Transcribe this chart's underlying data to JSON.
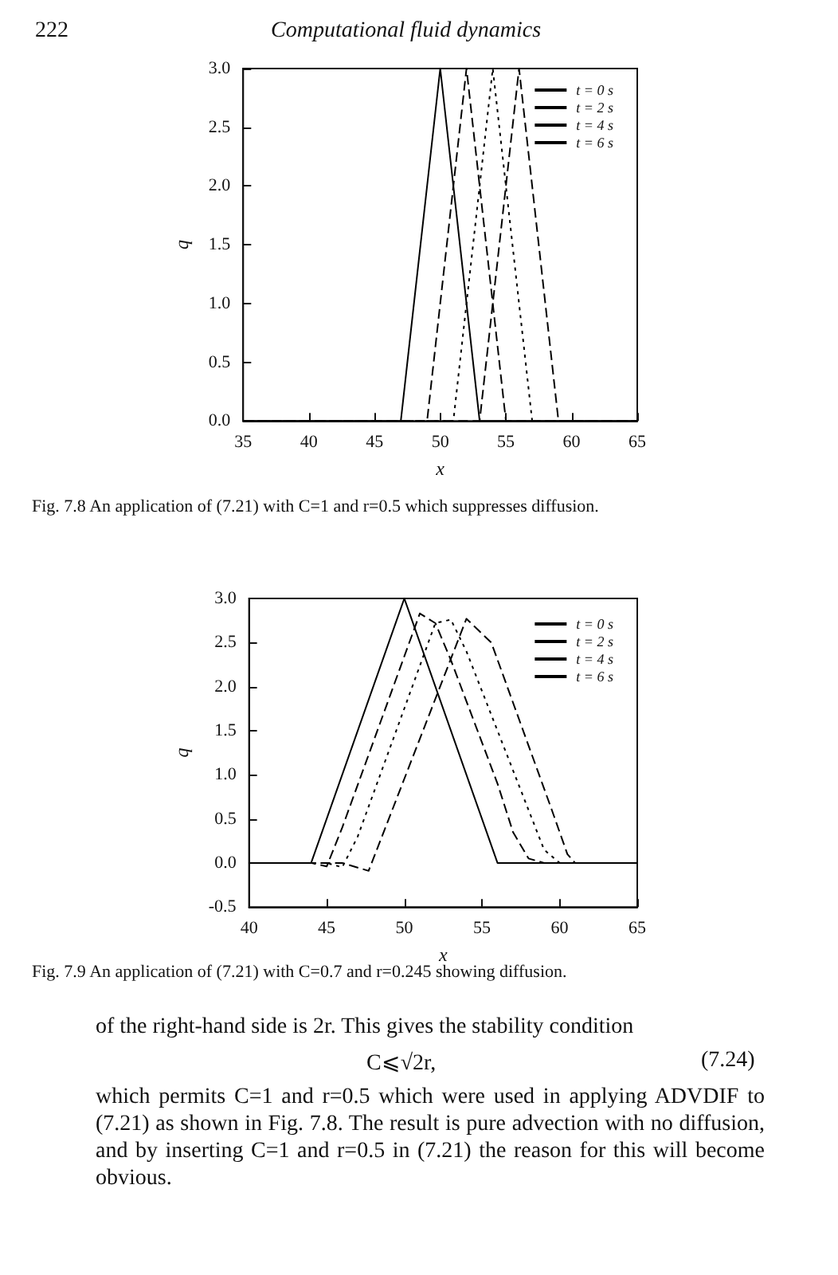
{
  "chart_data": [
    {
      "type": "line",
      "xlabel": "x",
      "ylabel": "q",
      "annotations": [
        "222",
        "Computational fluid dynamics",
        "Fig. 7.8   An application of (7.21) with C=1 and r=0.5 which suppresses diffusion."
      ],
      "series": [
        {
          "name": "t = 0 s",
          "color": "#000000",
          "line_style": "solid",
          "x": [
            35,
            47,
            50,
            53,
            65
          ],
          "values": [
            0,
            0,
            3.0,
            0,
            0
          ]
        },
        {
          "name": "t = 2 s",
          "color": "#000000",
          "line_style": "dashed",
          "x": [
            35,
            49,
            52,
            55,
            65
          ],
          "values": [
            0,
            0,
            3.0,
            0,
            0
          ]
        },
        {
          "name": "t = 4 s",
          "color": "#000000",
          "line_style": "dotted",
          "x": [
            35,
            51,
            54,
            57,
            65
          ],
          "values": [
            0,
            0,
            3.0,
            0,
            0
          ]
        },
        {
          "name": "t = 6 s",
          "color": "#000000",
          "line_style": "dashed",
          "x": [
            35,
            53,
            56,
            59,
            65
          ],
          "values": [
            0,
            0,
            3.0,
            0,
            0
          ]
        }
      ],
      "xlim": [
        35,
        65
      ],
      "xticks": [
        35,
        40,
        45,
        50,
        55,
        60,
        65
      ],
      "ylim": [
        0,
        3
      ],
      "yticks": [
        {
          "value": 0,
          "label": "0.0"
        },
        {
          "value": 0.5,
          "label": "0.5"
        },
        {
          "value": 1,
          "label": "1.0"
        },
        {
          "value": 1.5,
          "label": "1.5"
        },
        {
          "value": 2,
          "label": "2.0"
        },
        {
          "value": 2.5,
          "label": "2.5"
        },
        {
          "value": 3,
          "label": "3.0"
        }
      ],
      "grid": false,
      "legend": "top right",
      "marker": "none"
    },
    {
      "type": "line",
      "xlabel": "x",
      "ylabel": "q",
      "annotations": [
        "Fig. 7.9   An application of (7.21) with C=0.7 and r=0.245 showing diffusion.",
        "of the right-hand side is 2r. This gives the stability condition",
        "C⩽√2r,",
        "(7.24)",
        "which permits C=1 and r=0.5 which were used in applying ADVDIF to (7.21) as shown in Fig. 7.8. The result is pure advection with no diffusion, and by inserting C=1 and r=0.5 in (7.21) the reason for this will become obvious."
      ],
      "series": [
        {
          "name": "t = 0 s",
          "color": "#000000",
          "line_style": "solid",
          "x": [
            40,
            44,
            50,
            56,
            65
          ],
          "values": [
            0,
            0,
            3.0,
            0,
            0
          ]
        },
        {
          "name": "t = 2 s",
          "color": "#000000",
          "line_style": "dashed",
          "x": [
            40,
            44,
            45,
            46,
            51,
            52,
            53,
            56,
            57,
            58,
            59,
            65
          ],
          "values": [
            0,
            0,
            -0.04,
            0.4,
            2.83,
            2.72,
            2.3,
            0.9,
            0.35,
            0.05,
            0,
            0
          ]
        },
        {
          "name": "t = 4 s",
          "color": "#000000",
          "line_style": "dotted",
          "x": [
            40,
            45,
            46,
            47,
            52,
            53,
            54,
            58,
            59,
            60,
            65
          ],
          "values": [
            0,
            0,
            -0.05,
            0.3,
            2.72,
            2.76,
            2.4,
            0.6,
            0.15,
            0,
            0
          ]
        },
        {
          "name": "t = 6 s",
          "color": "#000000",
          "line_style": "dashed",
          "x": [
            40,
            46,
            47.7,
            49,
            54,
            55,
            55.6,
            59.5,
            60.5,
            61,
            65
          ],
          "values": [
            0,
            0,
            -0.09,
            0.5,
            2.77,
            2.6,
            2.5,
            0.6,
            0.1,
            0,
            0
          ]
        }
      ],
      "xlim": [
        40,
        65
      ],
      "xticks": [
        40,
        45,
        50,
        55,
        60,
        65
      ],
      "ylim": [
        -0.5,
        3
      ],
      "yticks": [
        {
          "value": -0.5,
          "label": "-0.5"
        },
        {
          "value": 0,
          "label": "0.0"
        },
        {
          "value": 0.5,
          "label": "0.5"
        },
        {
          "value": 1,
          "label": "1.0"
        },
        {
          "value": 1.5,
          "label": "1.5"
        },
        {
          "value": 2,
          "label": "2.0"
        },
        {
          "value": 2.5,
          "label": "2.5"
        },
        {
          "value": 3,
          "label": "3.0"
        }
      ],
      "grid": false,
      "legend": "top right",
      "marker": "none"
    }
  ]
}
